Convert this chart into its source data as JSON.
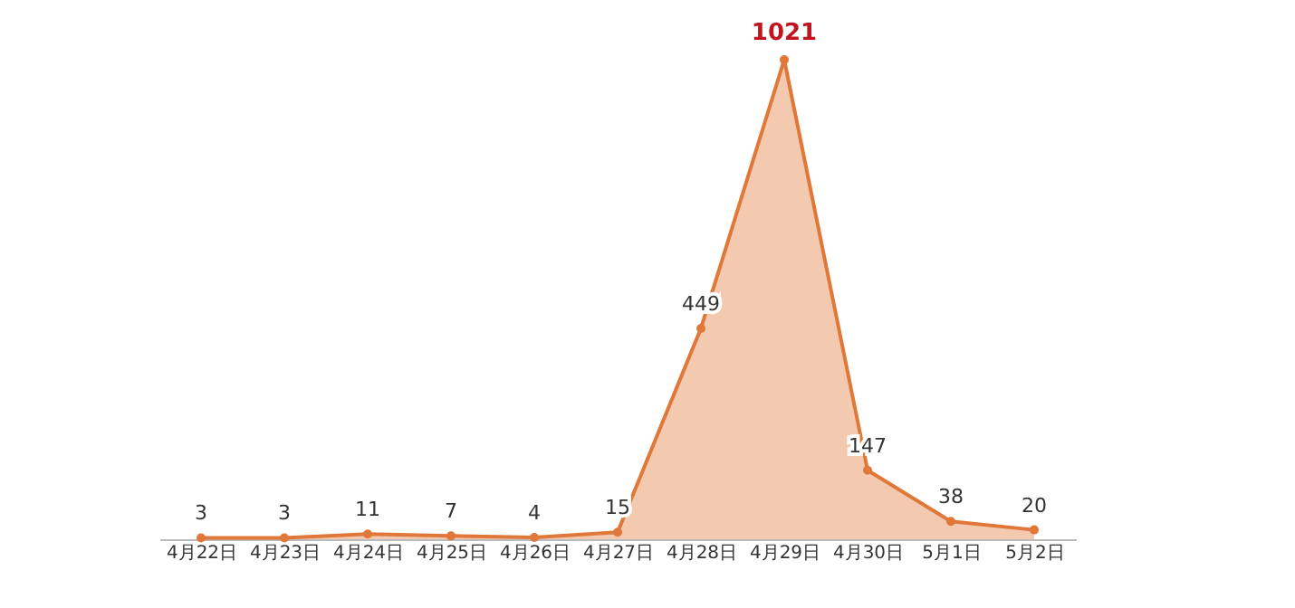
{
  "chart_data": {
    "type": "area",
    "categories": [
      "4月22日",
      "4月23日",
      "4月24日",
      "4月25日",
      "4月26日",
      "4月27日",
      "4月28日",
      "4月29日",
      "4月30日",
      "5月1日",
      "5月2日"
    ],
    "series": [
      {
        "color": "#e0783a",
        "values": [
          3,
          3,
          11,
          7,
          4,
          15,
          449,
          1021,
          147,
          38,
          20
        ]
      }
    ],
    "tick_labels": "x",
    "data_labels": true,
    "marker": "circle"
  }
}
